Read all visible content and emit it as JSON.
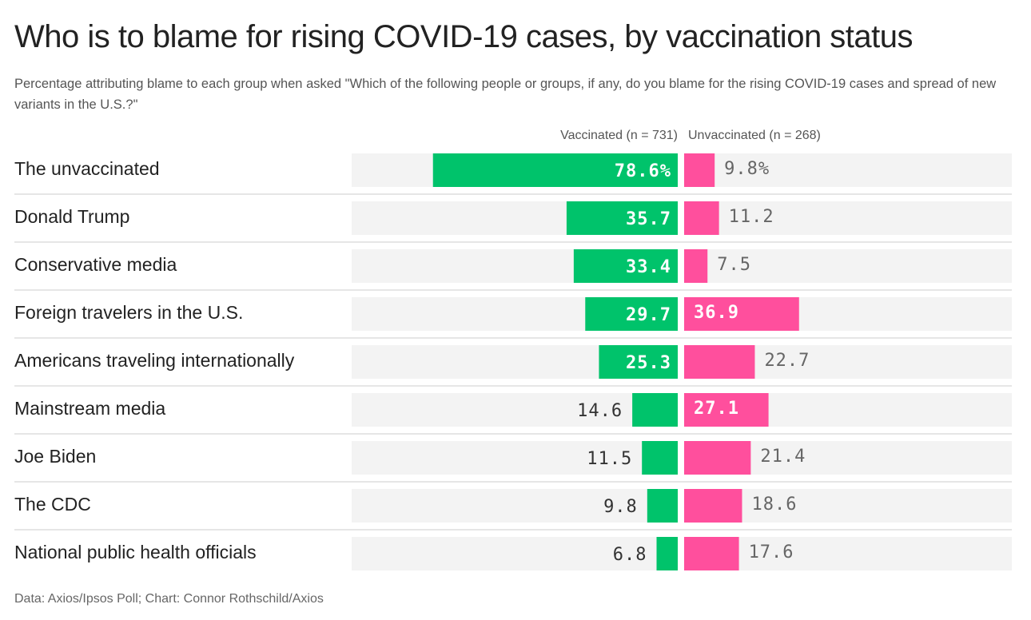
{
  "title": "Who is to blame for rising COVID-19 cases, by vaccination status",
  "subtitle": "Percentage attributing blame to each group when asked \"Which of the following people or groups, if any, do you blame for the rising COVID-19 cases and spread of new variants in the U.S.?\"",
  "footer": "Data: Axios/Ipsos Poll; Chart: Connor Rothschild/Axios",
  "colors": {
    "vaccinated": "#00c36b",
    "unvaccinated": "#ff4f9d",
    "track": "#f3f3f3",
    "label_dark": "#333333",
    "label_light": "#ffffff",
    "label_gray": "#666666"
  },
  "chart_data": {
    "type": "bar",
    "categories": [
      "The unvaccinated",
      "Donald Trump",
      "Conservative media",
      "Foreign travelers in the U.S.",
      "Americans traveling internationally",
      "Mainstream media",
      "Joe Biden",
      "The CDC",
      "National public health officials"
    ],
    "series": [
      {
        "name": "Vaccinated (n = 731)",
        "values": [
          78.6,
          35.7,
          33.4,
          29.7,
          25.3,
          14.6,
          11.5,
          9.8,
          6.8
        ],
        "labels": [
          "78.6%",
          "35.7",
          "33.4",
          "29.7",
          "25.3",
          "14.6",
          "11.5",
          "9.8",
          "6.8"
        ]
      },
      {
        "name": "Unvaccinated (n = 268)",
        "values": [
          9.8,
          11.2,
          7.5,
          36.9,
          22.7,
          27.1,
          21.4,
          18.6,
          17.6
        ],
        "labels": [
          "9.8%",
          "11.2",
          "7.5",
          "36.9",
          "22.7",
          "27.1",
          "21.4",
          "18.6",
          "17.6"
        ]
      }
    ],
    "xlim": [
      0,
      100
    ],
    "grid": false
  }
}
